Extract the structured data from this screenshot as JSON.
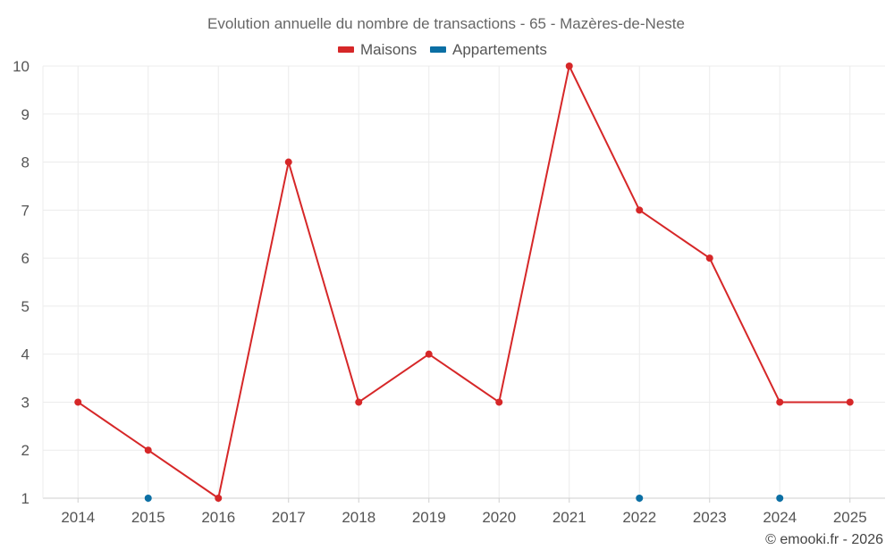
{
  "chart_data": {
    "type": "line",
    "title": "Evolution annuelle du nombre de transactions - 65 - Mazères-de-Neste",
    "x": [
      "2014",
      "2015",
      "2016",
      "2017",
      "2018",
      "2019",
      "2020",
      "2021",
      "2022",
      "2023",
      "2024",
      "2025"
    ],
    "yticks": [
      "1",
      "2",
      "3",
      "4",
      "5",
      "6",
      "7",
      "8",
      "9",
      "10"
    ],
    "ylim": [
      1,
      10
    ],
    "grid": true,
    "legend_position": "top-center",
    "series": [
      {
        "name": "Maisons",
        "color": "#d62728",
        "values": [
          3,
          2,
          1,
          8,
          3,
          4,
          3,
          10,
          7,
          6,
          3,
          3
        ]
      },
      {
        "name": "Appartements",
        "color": "#0b6fa4",
        "values": [
          null,
          1,
          null,
          null,
          null,
          null,
          null,
          null,
          1,
          null,
          1,
          null
        ]
      }
    ]
  },
  "footer": {
    "credit": "© emooki.fr - 2026"
  }
}
